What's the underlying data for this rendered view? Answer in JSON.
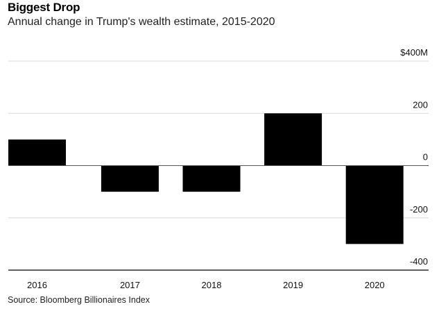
{
  "title": "Biggest Drop",
  "subtitle": "Annual change in Trump's wealth estimate, 2015-2020",
  "source": "Source: Bloomberg Billionaires Index",
  "chart_data": {
    "type": "bar",
    "categories": [
      "2016",
      "2017",
      "2018",
      "2019",
      "2020"
    ],
    "values": [
      100,
      -100,
      -100,
      200,
      -300
    ],
    "ylim": [
      -400,
      400
    ],
    "yticks": [
      400,
      200,
      0,
      -200,
      -400
    ],
    "ytick_labels": [
      "$400M",
      "200",
      "0",
      "-200",
      "-400"
    ],
    "xlabel": "",
    "ylabel": "",
    "bar_color": "#000000",
    "grid": true
  }
}
